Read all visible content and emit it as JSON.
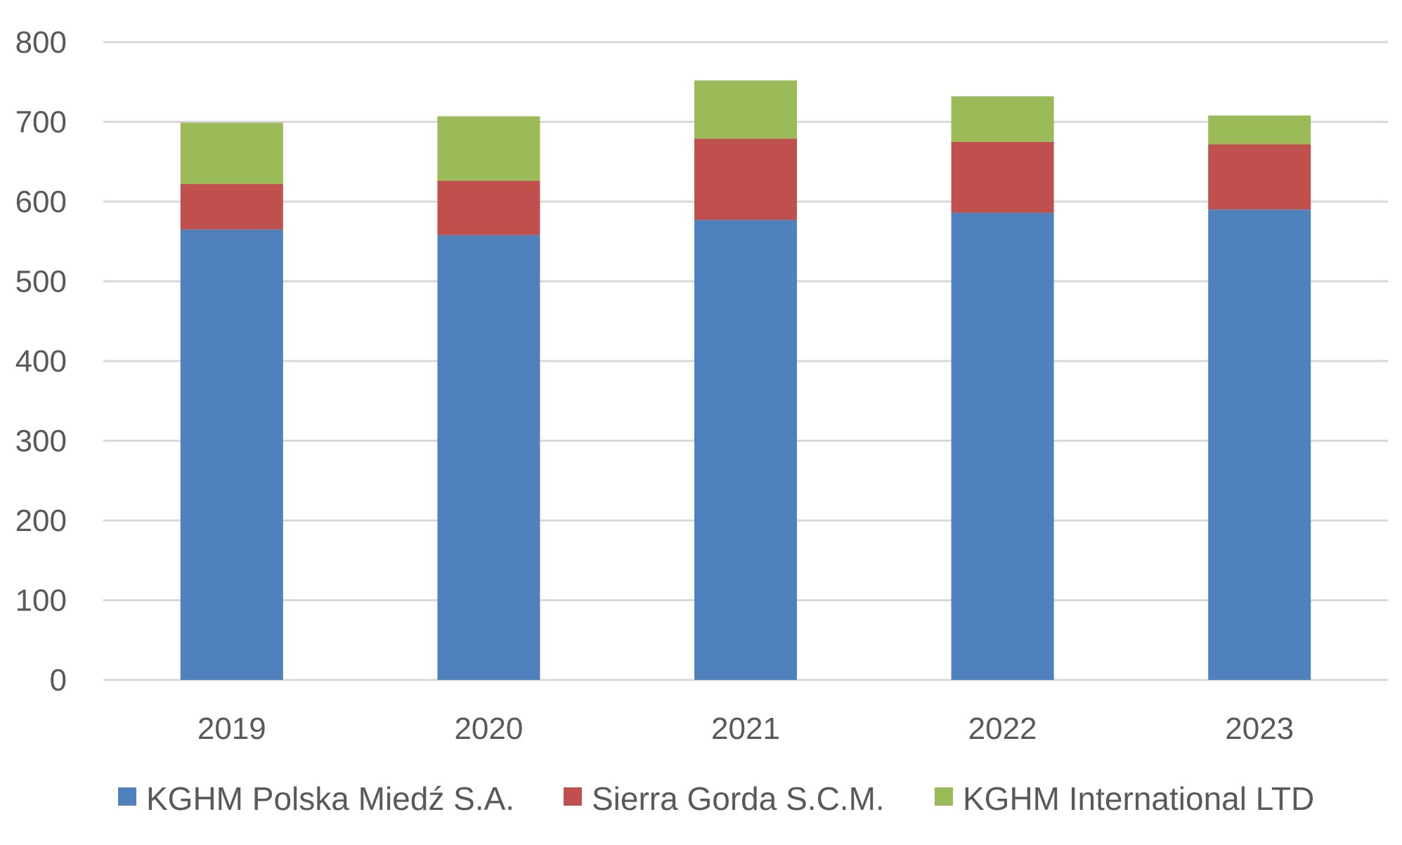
{
  "chart_data": {
    "type": "bar",
    "stacked": true,
    "title": "",
    "xlabel": "",
    "ylabel": "",
    "categories": [
      "2019",
      "2020",
      "2021",
      "2022",
      "2023"
    ],
    "ylim": [
      0,
      800
    ],
    "yticks": [
      0,
      100,
      200,
      300,
      400,
      500,
      600,
      700,
      800
    ],
    "grid": true,
    "legend_position": "bottom",
    "series": [
      {
        "name": "KGHM Polska Miedź S.A.",
        "color": "#4f81bd",
        "values": [
          565,
          558,
          577,
          586,
          590
        ]
      },
      {
        "name": "Sierra Gorda S.C.M.",
        "color": "#c0504d",
        "values": [
          57,
          68,
          102,
          89,
          82
        ]
      },
      {
        "name": "KGHM International LTD",
        "color": "#9bbb59",
        "values": [
          77,
          81,
          73,
          57,
          36
        ]
      }
    ]
  }
}
